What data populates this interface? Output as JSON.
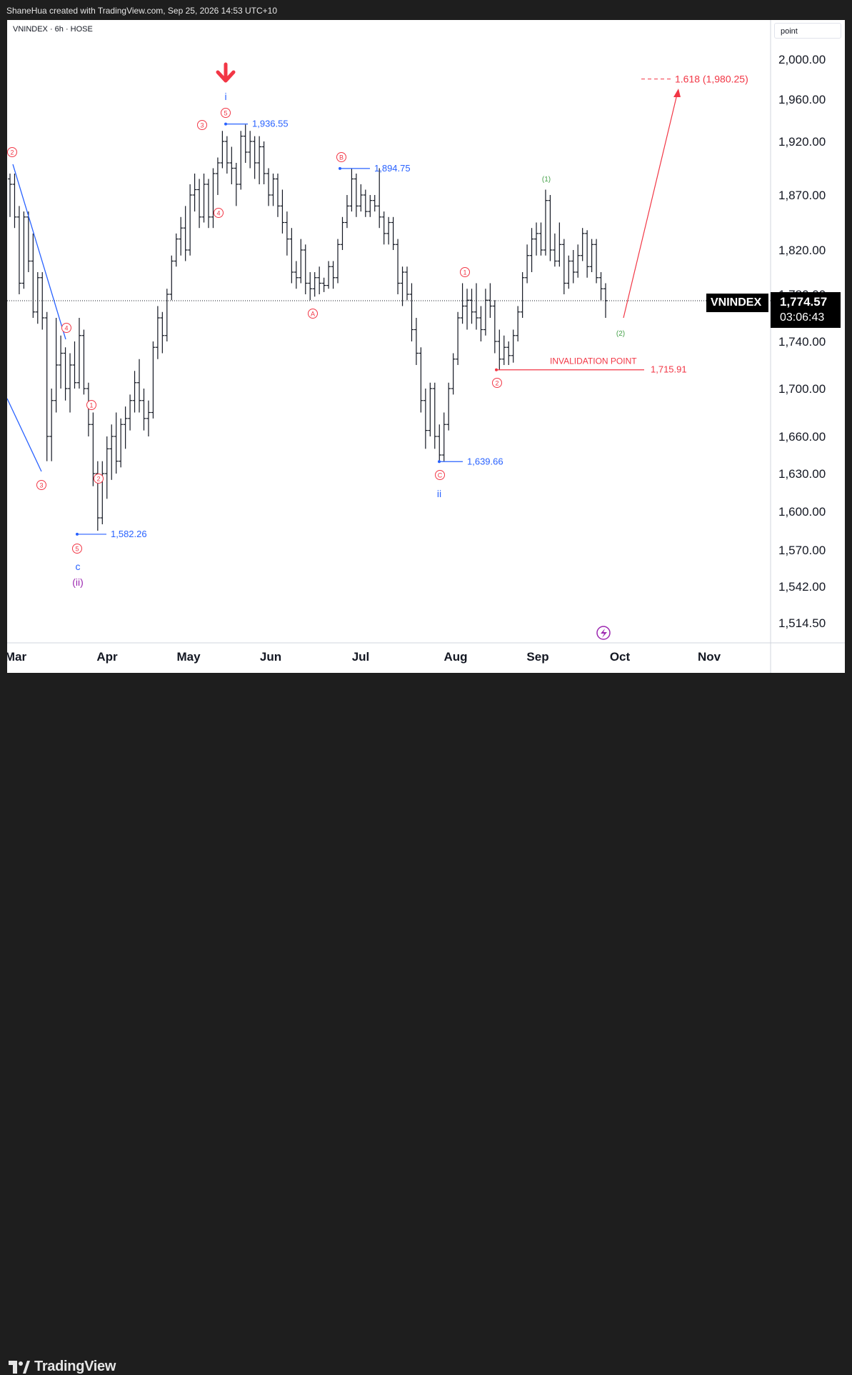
{
  "header": {
    "text": "ShaneHua created with TradingView.com, Sep 25, 2026 14:53 UTC+10"
  },
  "footer": {
    "brand": "TradingView"
  },
  "legend": {
    "symbol": "VNINDEX · 6h · HOSE"
  },
  "unit_label": "point",
  "current": {
    "symbol": "VNINDEX",
    "price": "1,774.57",
    "countdown": "03:06:43",
    "value": 1774.57
  },
  "colors": {
    "red": "#f23645",
    "blue": "#2962ff",
    "green": "#43a047",
    "purple": "#9c27b0",
    "bar": "#131722"
  },
  "chart_data": {
    "type": "ohlc",
    "interval": "6h",
    "yaxis": {
      "ticks": [
        2000,
        1960,
        1920,
        1870,
        1820,
        1780,
        1740,
        1700,
        1660,
        1630,
        1600,
        1570,
        1542,
        1514.5
      ],
      "tick_labels": [
        "2,000.00",
        "1,960.00",
        "1,920.00",
        "1,870.00",
        "1,820.00",
        "1,780.00",
        "1,740.00",
        "1,700.00",
        "1,660.00",
        "1,630.00",
        "1,600.00",
        "1,570.00",
        "1,542.00",
        "1,514.50"
      ]
    },
    "xaxis": {
      "labels": [
        "Mar",
        "Apr",
        "May",
        "Jun",
        "Jul",
        "Aug",
        "Sep",
        "Oct",
        "Nov"
      ]
    },
    "pivots": [
      {
        "label": "1,936.55",
        "value": 1936.55
      },
      {
        "label": "1,894.75",
        "value": 1894.75
      },
      {
        "label": "1,582.26",
        "value": 1582.26
      },
      {
        "label": "1,639.66",
        "value": 1639.66
      },
      {
        "label": "1,715.91",
        "value": 1715.91
      }
    ],
    "invalidation": {
      "label": "INVALIDATION POINT",
      "value": 1715.91,
      "value_label": "1,715.91"
    },
    "target": {
      "label": "1.618 (1,980.25)",
      "value": 1980.25
    },
    "wave_labels": {
      "red_circled": [
        "2",
        "3",
        "4",
        "5",
        "1",
        "2",
        "3",
        "4",
        "5",
        "A",
        "B",
        "C",
        "1",
        "2"
      ],
      "blue": [
        "i",
        "ii",
        "c"
      ],
      "purple": [
        "(ii)"
      ],
      "green": [
        "(1)",
        "(2)"
      ]
    },
    "bars": [
      [
        1885,
        1890,
        1850,
        1880
      ],
      [
        1880,
        1890,
        1840,
        1850
      ],
      [
        1850,
        1860,
        1780,
        1790
      ],
      [
        1790,
        1855,
        1785,
        1850
      ],
      [
        1850,
        1855,
        1800,
        1810
      ],
      [
        1810,
        1835,
        1760,
        1765
      ],
      [
        1765,
        1800,
        1755,
        1795
      ],
      [
        1795,
        1800,
        1750,
        1760
      ],
      [
        1760,
        1765,
        1640,
        1660
      ],
      [
        1660,
        1700,
        1640,
        1690
      ],
      [
        1690,
        1760,
        1680,
        1720
      ],
      [
        1720,
        1745,
        1700,
        1730
      ],
      [
        1730,
        1735,
        1690,
        1700
      ],
      [
        1700,
        1730,
        1680,
        1720
      ],
      [
        1720,
        1740,
        1700,
        1705
      ],
      [
        1705,
        1760,
        1700,
        1745
      ],
      [
        1745,
        1750,
        1695,
        1700
      ],
      [
        1700,
        1705,
        1660,
        1670
      ],
      [
        1670,
        1680,
        1620,
        1630
      ],
      [
        1630,
        1640,
        1585,
        1595
      ],
      [
        1595,
        1640,
        1590,
        1630
      ],
      [
        1630,
        1660,
        1610,
        1650
      ],
      [
        1650,
        1670,
        1625,
        1660
      ],
      [
        1660,
        1680,
        1630,
        1640
      ],
      [
        1640,
        1675,
        1635,
        1670
      ],
      [
        1670,
        1685,
        1650,
        1675
      ],
      [
        1675,
        1695,
        1665,
        1690
      ],
      [
        1690,
        1715,
        1680,
        1705
      ],
      [
        1705,
        1725,
        1680,
        1690
      ],
      [
        1690,
        1700,
        1665,
        1675
      ],
      [
        1675,
        1690,
        1660,
        1680
      ],
      [
        1680,
        1740,
        1675,
        1735
      ],
      [
        1735,
        1770,
        1725,
        1760
      ],
      [
        1760,
        1765,
        1730,
        1745
      ],
      [
        1745,
        1785,
        1740,
        1780
      ],
      [
        1780,
        1815,
        1775,
        1810
      ],
      [
        1810,
        1835,
        1805,
        1830
      ],
      [
        1830,
        1850,
        1815,
        1840
      ],
      [
        1840,
        1860,
        1810,
        1820
      ],
      [
        1820,
        1880,
        1815,
        1870
      ],
      [
        1870,
        1890,
        1855,
        1875
      ],
      [
        1875,
        1885,
        1840,
        1850
      ],
      [
        1850,
        1890,
        1845,
        1880
      ],
      [
        1880,
        1885,
        1840,
        1850
      ],
      [
        1850,
        1895,
        1840,
        1890
      ],
      [
        1890,
        1905,
        1870,
        1900
      ],
      [
        1900,
        1930,
        1895,
        1920
      ],
      [
        1920,
        1925,
        1890,
        1900
      ],
      [
        1900,
        1915,
        1880,
        1895
      ],
      [
        1895,
        1900,
        1860,
        1880
      ],
      [
        1880,
        1930,
        1875,
        1925
      ],
      [
        1925,
        1936,
        1900,
        1910
      ],
      [
        1910,
        1930,
        1895,
        1920
      ],
      [
        1920,
        1925,
        1885,
        1900
      ],
      [
        1900,
        1925,
        1880,
        1915
      ],
      [
        1915,
        1920,
        1880,
        1890
      ],
      [
        1890,
        1895,
        1860,
        1870
      ],
      [
        1870,
        1890,
        1860,
        1885
      ],
      [
        1885,
        1890,
        1850,
        1860
      ],
      [
        1860,
        1875,
        1835,
        1845
      ],
      [
        1845,
        1855,
        1815,
        1830
      ],
      [
        1830,
        1840,
        1790,
        1800
      ],
      [
        1800,
        1810,
        1785,
        1795
      ],
      [
        1795,
        1830,
        1790,
        1820
      ],
      [
        1820,
        1825,
        1780,
        1790
      ],
      [
        1790,
        1800,
        1775,
        1785
      ],
      [
        1785,
        1800,
        1778,
        1795
      ],
      [
        1795,
        1805,
        1780,
        1790
      ],
      [
        1790,
        1795,
        1782,
        1788
      ],
      [
        1788,
        1810,
        1785,
        1805
      ],
      [
        1805,
        1810,
        1785,
        1795
      ],
      [
        1795,
        1830,
        1790,
        1825
      ],
      [
        1825,
        1850,
        1820,
        1845
      ],
      [
        1845,
        1870,
        1840,
        1860
      ],
      [
        1860,
        1895,
        1855,
        1885
      ],
      [
        1885,
        1890,
        1850,
        1860
      ],
      [
        1860,
        1880,
        1855,
        1870
      ],
      [
        1870,
        1875,
        1850,
        1855
      ],
      [
        1855,
        1870,
        1850,
        1865
      ],
      [
        1865,
        1870,
        1855,
        1860
      ],
      [
        1860,
        1895,
        1840,
        1850
      ],
      [
        1850,
        1855,
        1825,
        1835
      ],
      [
        1835,
        1850,
        1825,
        1845
      ],
      [
        1845,
        1850,
        1820,
        1825
      ],
      [
        1825,
        1830,
        1780,
        1790
      ],
      [
        1790,
        1805,
        1770,
        1800
      ],
      [
        1800,
        1805,
        1775,
        1780
      ],
      [
        1780,
        1790,
        1740,
        1750
      ],
      [
        1750,
        1760,
        1720,
        1730
      ],
      [
        1730,
        1735,
        1680,
        1690
      ],
      [
        1690,
        1700,
        1650,
        1665
      ],
      [
        1665,
        1705,
        1660,
        1700
      ],
      [
        1700,
        1705,
        1650,
        1660
      ],
      [
        1660,
        1670,
        1640,
        1645
      ],
      [
        1645,
        1680,
        1640,
        1670
      ],
      [
        1670,
        1705,
        1665,
        1700
      ],
      [
        1700,
        1730,
        1695,
        1725
      ],
      [
        1725,
        1765,
        1720,
        1760
      ],
      [
        1760,
        1790,
        1755,
        1770
      ],
      [
        1770,
        1785,
        1750,
        1775
      ],
      [
        1775,
        1785,
        1755,
        1765
      ],
      [
        1765,
        1790,
        1750,
        1760
      ],
      [
        1760,
        1770,
        1740,
        1750
      ],
      [
        1750,
        1785,
        1745,
        1775
      ],
      [
        1775,
        1790,
        1760,
        1770
      ],
      [
        1770,
        1775,
        1730,
        1740
      ],
      [
        1740,
        1750,
        1716,
        1725
      ],
      [
        1725,
        1745,
        1720,
        1735
      ],
      [
        1735,
        1740,
        1720,
        1728
      ],
      [
        1728,
        1750,
        1722,
        1745
      ],
      [
        1745,
        1770,
        1740,
        1765
      ],
      [
        1765,
        1800,
        1760,
        1795
      ],
      [
        1795,
        1825,
        1790,
        1815
      ],
      [
        1815,
        1840,
        1800,
        1830
      ],
      [
        1830,
        1845,
        1815,
        1835
      ],
      [
        1835,
        1845,
        1815,
        1820
      ],
      [
        1820,
        1875,
        1815,
        1865
      ],
      [
        1865,
        1870,
        1810,
        1820
      ],
      [
        1820,
        1835,
        1805,
        1810
      ],
      [
        1810,
        1845,
        1805,
        1825
      ],
      [
        1825,
        1830,
        1780,
        1790
      ],
      [
        1790,
        1815,
        1785,
        1810
      ],
      [
        1810,
        1820,
        1790,
        1800
      ],
      [
        1800,
        1825,
        1795,
        1815
      ],
      [
        1815,
        1840,
        1810,
        1835
      ],
      [
        1835,
        1838,
        1795,
        1805
      ],
      [
        1805,
        1830,
        1800,
        1825
      ],
      [
        1825,
        1830,
        1790,
        1795
      ],
      [
        1795,
        1800,
        1775,
        1785
      ],
      [
        1785,
        1790,
        1760,
        1774.57
      ]
    ]
  }
}
